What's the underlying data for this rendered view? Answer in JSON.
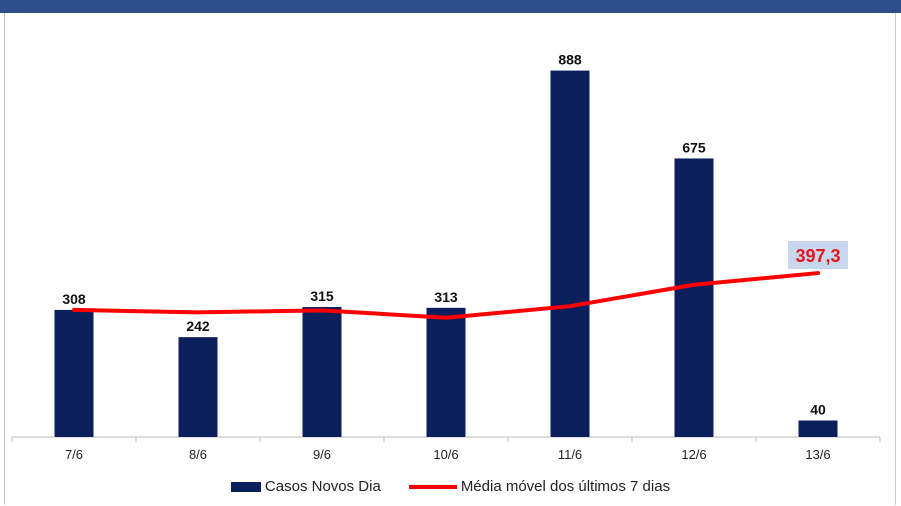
{
  "colors": {
    "bar": "#0b1f5c",
    "line": "#ff0000",
    "avg_label_bg": "#c6d7ee",
    "avg_label_text": "#e8141b",
    "header": "#2c4e8a"
  },
  "chart_data": {
    "type": "bar",
    "categories": [
      "7/6",
      "8/6",
      "9/6",
      "10/6",
      "11/6",
      "12/6",
      "13/6"
    ],
    "series": [
      {
        "name": "Casos Novos Dia",
        "type": "bar",
        "values": [
          308,
          242,
          315,
          313,
          888,
          675,
          40
        ]
      },
      {
        "name": "Média móvel dos últimos 7 dias",
        "type": "line",
        "values": [
          308,
          302,
          307,
          289,
          317,
          369,
          397.3
        ]
      }
    ],
    "data_labels": [
      "308",
      "242",
      "315",
      "313",
      "888",
      "675",
      "40"
    ],
    "avg_end_label": "397,3",
    "ylim": [
      0,
      950
    ],
    "grid": false,
    "legend_position": "bottom"
  },
  "legend": {
    "bars_label": "Casos Novos Dia",
    "line_label": "Média móvel dos últimos 7 dias"
  }
}
